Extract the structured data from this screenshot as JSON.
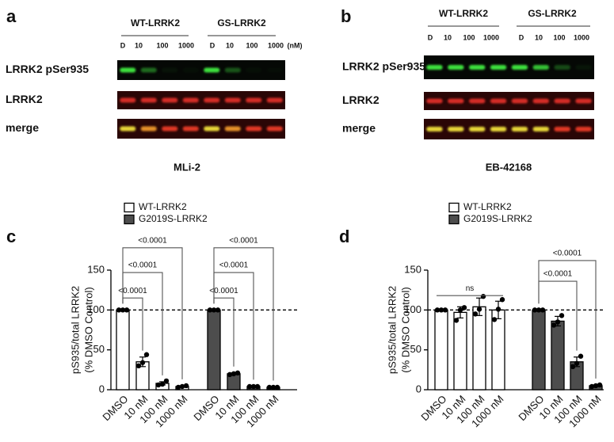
{
  "blots": [
    {
      "label": "a",
      "groups": [
        "WT-LRRK2",
        "GS-LRRK2"
      ],
      "lanes": [
        "D",
        "10",
        "100",
        "1000",
        "D",
        "10",
        "100",
        "1000"
      ],
      "unit": "(nM)",
      "rows": [
        "LRRK2 pSer935",
        "LRRK2",
        "merge"
      ],
      "compound": "MLi-2"
    },
    {
      "label": "b",
      "groups": [
        "WT-LRRK2",
        "GS-LRRK2"
      ],
      "lanes": [
        "D",
        "10",
        "100",
        "1000",
        "D",
        "10",
        "100",
        "1000"
      ],
      "rows": [
        "LRRK2 pSer935",
        "LRRK2",
        "merge"
      ],
      "compound": "EB-42168"
    }
  ],
  "chart_data": [
    {
      "type": "bar",
      "label": "c",
      "ylabel": [
        "pS935/total LRRK2",
        "(% DMSO Control)"
      ],
      "categories": [
        "DMSO",
        "10 nM",
        "100 nM",
        "1000 nM"
      ],
      "series": [
        {
          "name": "WT-LRRK2",
          "color": "#ffffff",
          "values": [
            100,
            35,
            8,
            4
          ],
          "errors": [
            0,
            6,
            2,
            1
          ],
          "points": [
            [
              100,
              100,
              100
            ],
            [
              30,
              34,
              44
            ],
            [
              6,
              7,
              11
            ],
            [
              3,
              4,
              5
            ]
          ]
        },
        {
          "name": "G2019S-LRRK2",
          "color": "#4d4d4d",
          "values": [
            100,
            20,
            4,
            3
          ],
          "errors": [
            0,
            1,
            0.5,
            0.5
          ],
          "points": [
            [
              100,
              100,
              100
            ],
            [
              19,
              20,
              21
            ],
            [
              4,
              4,
              4
            ],
            [
              3,
              3,
              3
            ]
          ]
        }
      ],
      "ylim": [
        0,
        150
      ],
      "yticks": [
        0,
        50,
        100,
        150
      ],
      "hline": 100,
      "annotations": [
        {
          "series": 0,
          "from": 0,
          "to": 1,
          "y": 115,
          "text": "<0.0001"
        },
        {
          "series": 0,
          "from": 0,
          "to": 2,
          "y": 147,
          "text": "<0.0001"
        },
        {
          "series": 0,
          "from": 0,
          "to": 3,
          "y": 178,
          "text": "<0.0001"
        },
        {
          "series": 1,
          "from": 0,
          "to": 1,
          "y": 115,
          "text": "<0.0001"
        },
        {
          "series": 1,
          "from": 0,
          "to": 2,
          "y": 147,
          "text": "<0.0001"
        },
        {
          "series": 1,
          "from": 0,
          "to": 3,
          "y": 178,
          "text": "<0.0001"
        }
      ]
    },
    {
      "type": "bar",
      "label": "d",
      "ylabel": [
        "pS935/total LRRK2",
        "(% DMSO Control)"
      ],
      "categories": [
        "DMSO",
        "10 nM",
        "100 nM",
        "1000 nM"
      ],
      "series": [
        {
          "name": "WT-LRRK2",
          "color": "#ffffff",
          "values": [
            100,
            97,
            104,
            100
          ],
          "errors": [
            0,
            7,
            11,
            11
          ],
          "points": [
            [
              100,
              100,
              100
            ],
            [
              87,
              100,
              103
            ],
            [
              95,
              101,
              117
            ],
            [
              88,
              101,
              113
            ]
          ]
        },
        {
          "name": "G2019S-LRRK2",
          "color": "#4d4d4d",
          "values": [
            100,
            86,
            35,
            5
          ],
          "errors": [
            0,
            6,
            6,
            1
          ],
          "points": [
            [
              100,
              100,
              100
            ],
            [
              81,
              85,
              93
            ],
            [
              29,
              33,
              42
            ],
            [
              4,
              5,
              6
            ]
          ]
        }
      ],
      "ylim": [
        0,
        150
      ],
      "yticks": [
        0,
        50,
        100,
        150
      ],
      "hline": 100,
      "annotations": [
        {
          "series": 0,
          "from": 0,
          "to": 3,
          "y": 118,
          "text": "ns",
          "style": "line"
        },
        {
          "series": 1,
          "from": 0,
          "to": 2,
          "y": 136,
          "text": "<0.0001"
        },
        {
          "series": 1,
          "from": 0,
          "to": 3,
          "y": 162,
          "text": "<0.0001"
        }
      ]
    }
  ]
}
